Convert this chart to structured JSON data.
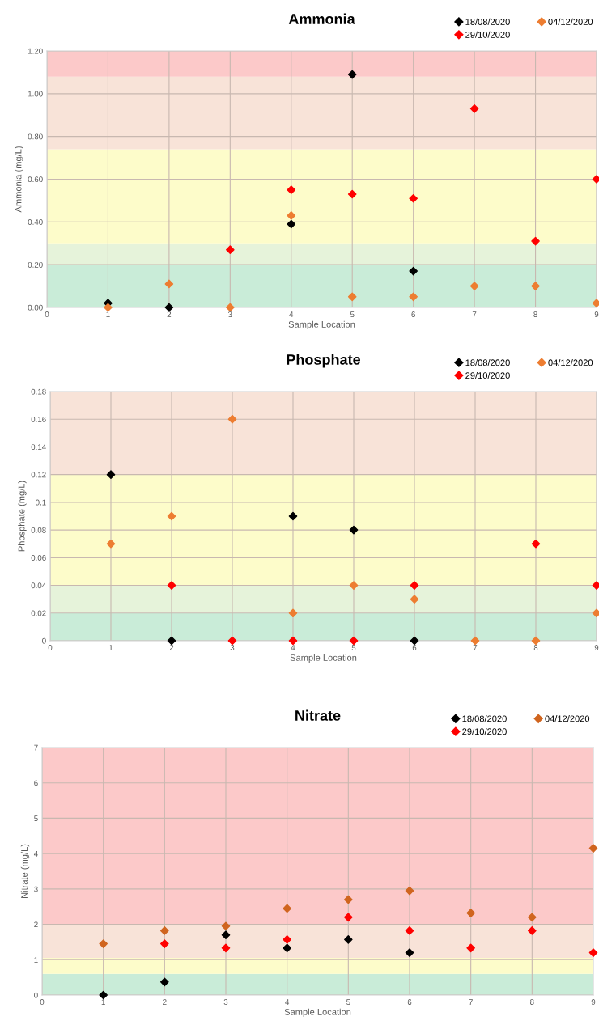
{
  "chart_data": [
    {
      "type": "scatter",
      "title": "Ammonia",
      "xlabel": "Sample Location",
      "ylabel": "Ammonia (mg/L)",
      "xlim": [
        0,
        9
      ],
      "xticks": [
        0,
        1,
        2,
        3,
        4,
        5,
        6,
        7,
        8,
        9
      ],
      "ylim": [
        0,
        1.2
      ],
      "yticks": [
        {
          "value": 0,
          "label": "0.00"
        },
        {
          "value": 0.2,
          "label": "0.20"
        },
        {
          "value": 0.4,
          "label": "0.40"
        },
        {
          "value": 0.6,
          "label": "0.60"
        },
        {
          "value": 0.8,
          "label": "0.80"
        },
        {
          "value": 1.0,
          "label": "1.00"
        },
        {
          "value": 1.2,
          "label": "1.20"
        }
      ],
      "grid": true,
      "legend": "top right",
      "marker": "diamond",
      "bands": [
        {
          "axis": "y",
          "from": 0,
          "to": 0.2,
          "color": "#c9ecd8"
        },
        {
          "axis": "y",
          "from": 0.2,
          "to": 0.3,
          "color": "#e6f3da"
        },
        {
          "axis": "y",
          "from": 0.3,
          "to": 0.74,
          "color": "#fdfcca"
        },
        {
          "axis": "y",
          "from": 0.74,
          "to": 1.08,
          "color": "#f8e3d8"
        },
        {
          "axis": "y",
          "from": 1.08,
          "to": 1.2,
          "color": "#fcc9c9"
        }
      ],
      "series": [
        {
          "name": "18/08/2020",
          "color": "#000000",
          "x": [
            1,
            2,
            4,
            5,
            6
          ],
          "values": [
            0.02,
            0.0,
            0.39,
            1.09,
            0.17
          ]
        },
        {
          "name": "29/10/2020",
          "color": "#ff0000",
          "x": [
            3,
            4,
            5,
            6,
            7,
            8,
            9
          ],
          "values": [
            0.27,
            0.55,
            0.53,
            0.51,
            0.93,
            0.31,
            0.6
          ]
        },
        {
          "name": "04/12/2020",
          "color": "#ed7d31",
          "x": [
            1,
            2,
            3,
            4,
            5,
            6,
            7,
            8,
            9
          ],
          "values": [
            0.0,
            0.11,
            0.0,
            0.43,
            0.05,
            0.05,
            0.1,
            0.1,
            0.02
          ]
        }
      ]
    },
    {
      "type": "scatter",
      "title": "Phosphate",
      "xlabel": "Sample Location",
      "ylabel": "Phosphate (mg/L)",
      "xlim": [
        0,
        9
      ],
      "xticks": [
        0,
        1,
        2,
        3,
        4,
        5,
        6,
        7,
        8,
        9
      ],
      "ylim": [
        0,
        0.18
      ],
      "yticks": [
        0,
        0.02,
        0.04,
        0.06,
        0.08,
        0.1,
        0.12,
        0.14,
        0.16,
        0.18
      ],
      "grid": true,
      "legend": "top right",
      "marker": "diamond",
      "bands": [
        {
          "axis": "y",
          "from": 0,
          "to": 0.02,
          "color": "#c9ecd8"
        },
        {
          "axis": "y",
          "from": 0.02,
          "to": 0.04,
          "color": "#e6f3da"
        },
        {
          "axis": "y",
          "from": 0.04,
          "to": 0.12,
          "color": "#fdfcca"
        },
        {
          "axis": "y",
          "from": 0.12,
          "to": 0.18,
          "color": "#f8e3d8"
        }
      ],
      "series": [
        {
          "name": "18/08/2020",
          "color": "#000000",
          "x": [
            1,
            2,
            4,
            5,
            6
          ],
          "values": [
            0.12,
            0,
            0.09,
            0.08,
            0
          ]
        },
        {
          "name": "29/10/2020",
          "color": "#ff0000",
          "x": [
            2,
            3,
            4,
            5,
            6,
            8,
            9
          ],
          "values": [
            0.04,
            0,
            0,
            0,
            0.04,
            0.07,
            0.04
          ]
        },
        {
          "name": "04/12/2020",
          "color": "#ed7d31",
          "x": [
            1,
            2,
            3,
            4,
            5,
            6,
            7,
            8,
            9
          ],
          "values": [
            0.07,
            0.09,
            0.16,
            0.02,
            0.04,
            0.03,
            0,
            0,
            0.02
          ]
        }
      ]
    },
    {
      "type": "scatter",
      "title": "Nitrate",
      "xlabel": "Sample Location",
      "ylabel": "Nitrate (mg/L)",
      "xlim": [
        0,
        9
      ],
      "xticks": [
        0,
        1,
        2,
        3,
        4,
        5,
        6,
        7,
        8,
        9
      ],
      "ylim": [
        0,
        7
      ],
      "yticks": [
        0,
        1,
        2,
        3,
        4,
        5,
        6,
        7
      ],
      "grid": true,
      "legend": "top right",
      "marker": "diamond",
      "bands": [
        {
          "axis": "y",
          "from": 0,
          "to": 0.6,
          "color": "#c9ecd8"
        },
        {
          "axis": "y",
          "from": 0.6,
          "to": 1.05,
          "color": "#fdfcca"
        },
        {
          "axis": "y",
          "from": 1.05,
          "to": 2,
          "color": "#f8e3d8"
        },
        {
          "axis": "y",
          "from": 2,
          "to": 7,
          "color": "#fcc9c9"
        }
      ],
      "series": [
        {
          "name": "18/08/2020",
          "color": "#000000",
          "x": [
            1,
            2,
            3,
            4,
            5,
            6
          ],
          "values": [
            0,
            0.37,
            1.7,
            1.33,
            1.57,
            1.2
          ]
        },
        {
          "name": "29/10/2020",
          "color": "#ff0000",
          "x": [
            2,
            3,
            4,
            5,
            6,
            7,
            8,
            9
          ],
          "values": [
            1.45,
            1.33,
            1.57,
            2.2,
            1.82,
            1.33,
            1.82,
            1.2
          ]
        },
        {
          "name": "04/12/2020",
          "color": "#d0651f",
          "x": [
            1,
            2,
            3,
            4,
            5,
            6,
            7,
            8,
            9
          ],
          "values": [
            1.45,
            1.82,
            1.95,
            2.45,
            2.7,
            2.95,
            2.32,
            2.2,
            4.15
          ]
        }
      ]
    }
  ]
}
